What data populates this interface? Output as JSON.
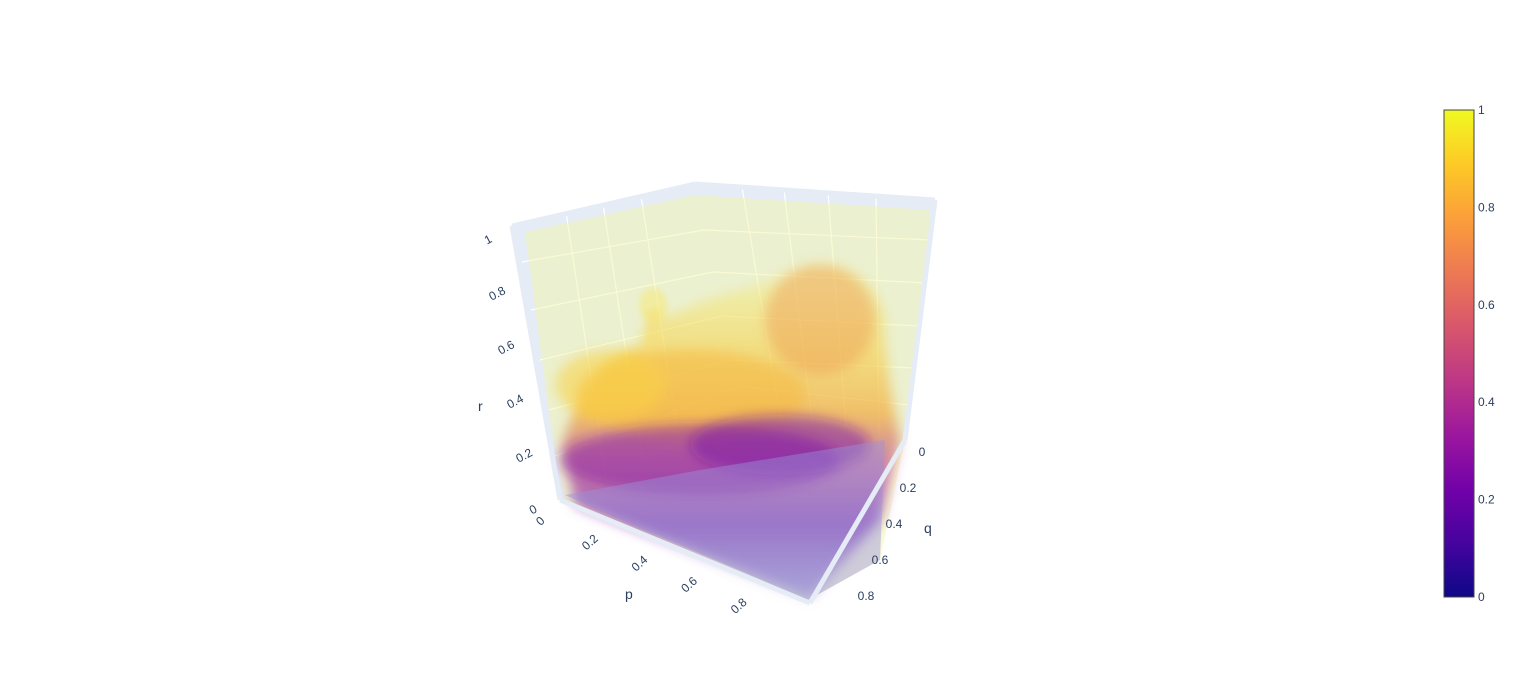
{
  "chart_data": {
    "type": "volume",
    "x_axis": {
      "title": "p",
      "range": [
        0,
        1
      ],
      "ticks": [
        "0",
        "0.2",
        "0.4",
        "0.6",
        "0.8"
      ]
    },
    "y_axis": {
      "title": "q",
      "range": [
        0,
        1
      ],
      "ticks": [
        "0",
        "0.2",
        "0.4",
        "0.6",
        "0.8"
      ]
    },
    "z_axis": {
      "title": "r",
      "range": [
        0,
        1
      ],
      "ticks": [
        "0",
        "0.2",
        "0.4",
        "0.6",
        "0.8",
        "1"
      ]
    },
    "colorbar": {
      "range": [
        0,
        1
      ],
      "ticks": [
        "0",
        "0.2",
        "0.4",
        "0.6",
        "0.8",
        "1"
      ],
      "colorscale": [
        "#0d0887",
        "#46039f",
        "#7201a8",
        "#9c179e",
        "#bd3786",
        "#d8576b",
        "#ed7953",
        "#fb9f3a",
        "#fdca26",
        "#f0f921"
      ]
    },
    "value_trend": "value increases with r: purple (~0.2-0.4) near r=0, orange-yellow (~0.8-1) at higher r",
    "scene_colors": {
      "background_face": "#e5ecf6",
      "grid": "#ffffff"
    }
  }
}
